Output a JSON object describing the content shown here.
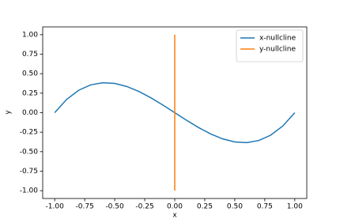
{
  "chart_data": {
    "type": "line",
    "xlabel": "x",
    "ylabel": "y",
    "series": [
      {
        "name": "x-nullcline",
        "color": "#1f77b4",
        "x": [
          -1.0,
          -0.9,
          -0.8,
          -0.7,
          -0.6,
          -0.5,
          -0.4,
          -0.3,
          -0.2,
          -0.1,
          0.0,
          0.1,
          0.2,
          0.3,
          0.4,
          0.5,
          0.6,
          0.7,
          0.8,
          0.9,
          1.0
        ],
        "values": [
          0.0,
          0.171,
          0.288,
          0.357,
          0.384,
          0.375,
          0.336,
          0.273,
          0.192,
          0.099,
          0.0,
          -0.099,
          -0.192,
          -0.273,
          -0.336,
          -0.375,
          -0.384,
          -0.357,
          -0.288,
          -0.171,
          0.0
        ]
      },
      {
        "name": "y-nullcline",
        "color": "#ff7f0e",
        "x": [
          0.0,
          0.0
        ],
        "values": [
          -1.0,
          1.0
        ]
      }
    ],
    "xlim": [
      -1.1,
      1.1
    ],
    "ylim": [
      -1.1,
      1.1
    ],
    "xticks": [
      {
        "value": -1,
        "label": "-1.00"
      },
      {
        "value": -0.75,
        "label": "-0.75"
      },
      {
        "value": -0.5,
        "label": "-0.50"
      },
      {
        "value": -0.25,
        "label": "-0.25"
      },
      {
        "value": 0,
        "label": "0.00"
      },
      {
        "value": 0.25,
        "label": "0.25"
      },
      {
        "value": 0.5,
        "label": "0.50"
      },
      {
        "value": 0.75,
        "label": "0.75"
      },
      {
        "value": 1,
        "label": "1.00"
      }
    ],
    "yticks": [
      {
        "value": -1,
        "label": "-1.00"
      },
      {
        "value": -0.75,
        "label": "-0.75"
      },
      {
        "value": -0.5,
        "label": "-0.50"
      },
      {
        "value": -0.25,
        "label": "-0.25"
      },
      {
        "value": 0,
        "label": "0.00"
      },
      {
        "value": 0.25,
        "label": "0.25"
      },
      {
        "value": 0.5,
        "label": "0.50"
      },
      {
        "value": 0.75,
        "label": "0.75"
      },
      {
        "value": 1,
        "label": "1.00"
      }
    ],
    "legend": "upper right"
  }
}
